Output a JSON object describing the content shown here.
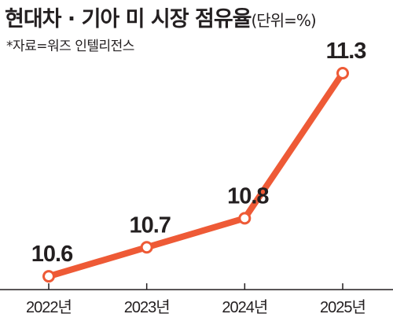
{
  "header": {
    "title": "현대차 · 기아 미 시장 점유율",
    "unit": "(단위=%)",
    "source": "*자료=워즈 인텔리전스"
  },
  "colors": {
    "line": "#ee5a36",
    "marker_fill": "#ffffff",
    "text": "#231f20",
    "axis": "#231f20"
  },
  "chart_data": {
    "type": "line",
    "categories": [
      "2022년",
      "2023년",
      "2024년",
      "2025년"
    ],
    "series": [
      {
        "values": [
          10.6,
          10.7,
          10.8,
          11.3
        ]
      }
    ],
    "data_labels": [
      "10.6",
      "10.7",
      "10.8",
      "11.3"
    ],
    "title": "현대차 · 기아 미 시장 점유율",
    "unit": "%",
    "xlabel": "",
    "ylabel": "",
    "grid": false
  }
}
